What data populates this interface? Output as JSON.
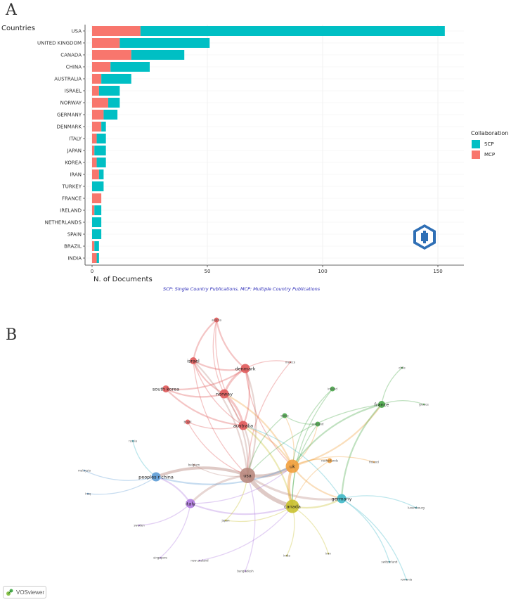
{
  "panel_a": {
    "letter": "A"
  },
  "panel_b": {
    "letter": "B"
  },
  "vosviewer": {
    "label": "VOSviewer"
  },
  "colors": {
    "scp": "#00BFC4",
    "mcp": "#F8766D",
    "cluster_red": "#e05a5a",
    "cluster_orange": "#f2a03d",
    "cluster_green": "#4aa84a",
    "cluster_yellow": "#c9c12e",
    "cluster_teal": "#3fb8c8",
    "cluster_blue": "#5b9bd5",
    "cluster_purple": "#b07be0",
    "cluster_brown": "#b98a80"
  },
  "chart_data": [
    {
      "type": "bar",
      "orientation": "horizontal",
      "stacked": true,
      "title": "Countries",
      "xlabel": "N. of Documents",
      "xlim": [
        0,
        160
      ],
      "xticks": [
        0,
        50,
        100,
        150
      ],
      "categories": [
        "USA",
        "UNITED KINGDOM",
        "CANADA",
        "CHINA",
        "AUSTRALIA",
        "ISRAEL",
        "NORWAY",
        "GERMANY",
        "DENMARK",
        "ITALY",
        "JAPAN",
        "KOREA",
        "IRAN",
        "TURKEY",
        "FRANCE",
        "IRELAND",
        "NETHERLANDS",
        "SPAIN",
        "BRAZIL",
        "INDIA"
      ],
      "series": [
        {
          "name": "MCP",
          "values": [
            21,
            12,
            17,
            8,
            4,
            3,
            7,
            5,
            4,
            2,
            1,
            2,
            3,
            0,
            4,
            1,
            0,
            0,
            1,
            2
          ]
        },
        {
          "name": "SCP",
          "values": [
            132,
            39,
            23,
            17,
            13,
            9,
            5,
            6,
            2,
            4,
            5,
            4,
            2,
            5,
            0,
            3,
            4,
            4,
            2,
            1
          ]
        }
      ],
      "legend": {
        "title": "Collaboration",
        "entries": [
          "SCP",
          "MCP"
        ],
        "position": "right"
      },
      "caption": "SCP: Single Country Publications, MCP: Multiple Country Publications"
    },
    {
      "type": "network",
      "title": "",
      "nodes": [
        {
          "id": "austria",
          "label": "austria",
          "cluster": "red",
          "weight": 1
        },
        {
          "id": "israel",
          "label": "israel",
          "cluster": "red",
          "weight": 2
        },
        {
          "id": "denmark",
          "label": "denmark",
          "cluster": "red",
          "weight": 3
        },
        {
          "id": "mexico",
          "label": "mexico",
          "cluster": "red",
          "weight": 0
        },
        {
          "id": "south_korea",
          "label": "south korea",
          "cluster": "red",
          "weight": 2
        },
        {
          "id": "norway",
          "label": "norway",
          "cluster": "red",
          "weight": 3
        },
        {
          "id": "brazil",
          "label": "brazil",
          "cluster": "red",
          "weight": 1
        },
        {
          "id": "australia",
          "label": "australia",
          "cluster": "red",
          "weight": 3
        },
        {
          "id": "chile",
          "label": "chile",
          "cluster": "green",
          "weight": 0
        },
        {
          "id": "ireland",
          "label": "ireland",
          "cluster": "green",
          "weight": 1
        },
        {
          "id": "france",
          "label": "france",
          "cluster": "green",
          "weight": 2
        },
        {
          "id": "greece",
          "label": "greece",
          "cluster": "green",
          "weight": 0
        },
        {
          "id": "wales",
          "label": "wales",
          "cluster": "green",
          "weight": 1
        },
        {
          "id": "scotland",
          "label": "scotland",
          "cluster": "green",
          "weight": 1
        },
        {
          "id": "netherlands",
          "label": "netherlands",
          "cluster": "orange",
          "weight": 1
        },
        {
          "id": "finland",
          "label": "finland",
          "cluster": "orange",
          "weight": 0
        },
        {
          "id": "uk",
          "label": "uk",
          "cluster": "orange",
          "weight": 5
        },
        {
          "id": "usa",
          "label": "usa",
          "cluster": "brown",
          "weight": 6
        },
        {
          "id": "belgium",
          "label": "belgium",
          "cluster": "brown",
          "weight": 0
        },
        {
          "id": "russia",
          "label": "russia",
          "cluster": "teal",
          "weight": 0
        },
        {
          "id": "malaysia",
          "label": "malaysia",
          "cluster": "blue",
          "weight": 0
        },
        {
          "id": "iraq",
          "label": "iraq",
          "cluster": "blue",
          "weight": 0
        },
        {
          "id": "peoples_china",
          "label": "peoples r china",
          "cluster": "blue",
          "weight": 3
        },
        {
          "id": "italy",
          "label": "italy",
          "cluster": "purple",
          "weight": 3
        },
        {
          "id": "canada",
          "label": "canada",
          "cluster": "yellow",
          "weight": 5
        },
        {
          "id": "germany",
          "label": "germany",
          "cluster": "teal",
          "weight": 3
        },
        {
          "id": "luxembourg",
          "label": "luxembourg",
          "cluster": "teal",
          "weight": 0
        },
        {
          "id": "sweden",
          "label": "sweden",
          "cluster": "purple",
          "weight": 0
        },
        {
          "id": "japan",
          "label": "japan",
          "cluster": "yellow",
          "weight": 0
        },
        {
          "id": "singapore",
          "label": "singapore",
          "cluster": "purple",
          "weight": 0
        },
        {
          "id": "new_zealand",
          "label": "new zealand",
          "cluster": "purple",
          "weight": 0
        },
        {
          "id": "india",
          "label": "india",
          "cluster": "yellow",
          "weight": 0
        },
        {
          "id": "iran",
          "label": "iran",
          "cluster": "yellow",
          "weight": 0
        },
        {
          "id": "switzerland",
          "label": "switzerland",
          "cluster": "teal",
          "weight": 0
        },
        {
          "id": "bangladesh",
          "label": "bangladesh",
          "cluster": "purple",
          "weight": 0
        },
        {
          "id": "romania",
          "label": "romania",
          "cluster": "teal",
          "weight": 0
        }
      ],
      "links": [
        [
          "usa",
          "uk",
          5
        ],
        [
          "usa",
          "canada",
          6
        ],
        [
          "uk",
          "canada",
          4
        ],
        [
          "usa",
          "peoples_china",
          4
        ],
        [
          "usa",
          "italy",
          3
        ],
        [
          "usa",
          "germany",
          3
        ],
        [
          "uk",
          "germany",
          2
        ],
        [
          "canada",
          "germany",
          2
        ],
        [
          "usa",
          "australia",
          2
        ],
        [
          "usa",
          "norway",
          2
        ],
        [
          "usa",
          "denmark",
          2
        ],
        [
          "usa",
          "israel",
          2
        ],
        [
          "uk",
          "australia",
          2
        ],
        [
          "uk",
          "norway",
          2
        ],
        [
          "uk",
          "france",
          2
        ],
        [
          "denmark",
          "norway",
          3
        ],
        [
          "israel",
          "norway",
          2
        ],
        [
          "israel",
          "denmark",
          2
        ],
        [
          "austria",
          "israel",
          2
        ],
        [
          "austria",
          "denmark",
          2
        ],
        [
          "austria",
          "norway",
          1
        ],
        [
          "austria",
          "australia",
          1
        ],
        [
          "south_korea",
          "norway",
          2
        ],
        [
          "south_korea",
          "denmark",
          2
        ],
        [
          "south_korea",
          "australia",
          2
        ],
        [
          "australia",
          "norway",
          3
        ],
        [
          "australia",
          "denmark",
          2
        ],
        [
          "israel",
          "australia",
          1
        ],
        [
          "brazil",
          "australia",
          1
        ],
        [
          "brazil",
          "usa",
          1
        ],
        [
          "wales",
          "scotland",
          1
        ],
        [
          "uk",
          "wales",
          1
        ],
        [
          "uk",
          "scotland",
          1
        ],
        [
          "france",
          "uk",
          2
        ],
        [
          "france",
          "germany",
          2
        ],
        [
          "chile",
          "france",
          1
        ],
        [
          "greece",
          "france",
          1
        ],
        [
          "ireland",
          "uk",
          1
        ],
        [
          "netherlands",
          "uk",
          1
        ],
        [
          "finland",
          "uk",
          1
        ],
        [
          "belgium",
          "usa",
          1
        ],
        [
          "russia",
          "peoples_china",
          1
        ],
        [
          "malaysia",
          "peoples_china",
          1
        ],
        [
          "iraq",
          "peoples_china",
          1
        ],
        [
          "italy",
          "canada",
          2
        ],
        [
          "italy",
          "peoples_china",
          2
        ],
        [
          "sweden",
          "italy",
          1
        ],
        [
          "japan",
          "canada",
          1
        ],
        [
          "singapore",
          "italy",
          1
        ],
        [
          "new_zealand",
          "canada",
          1
        ],
        [
          "india",
          "canada",
          1
        ],
        [
          "iran",
          "canada",
          1
        ],
        [
          "switzerland",
          "germany",
          1
        ],
        [
          "luxembourg",
          "germany",
          1
        ],
        [
          "bangladesh",
          "usa",
          1
        ],
        [
          "romania",
          "germany",
          1
        ],
        [
          "mexico",
          "denmark",
          1
        ],
        [
          "mexico",
          "usa",
          1
        ],
        [
          "canada",
          "australia",
          2
        ],
        [
          "peoples_china",
          "uk",
          2
        ],
        [
          "germany",
          "australia",
          1
        ],
        [
          "france",
          "usa",
          1
        ],
        [
          "scotland",
          "canada",
          1
        ],
        [
          "netherlands",
          "canada",
          1
        ],
        [
          "italy",
          "uk",
          1
        ],
        [
          "denmark",
          "uk",
          1
        ],
        [
          "israel",
          "usa",
          1
        ],
        [
          "japan",
          "usa",
          1
        ],
        [
          "ireland",
          "canada",
          1
        ],
        [
          "wales",
          "usa",
          1
        ]
      ]
    }
  ]
}
